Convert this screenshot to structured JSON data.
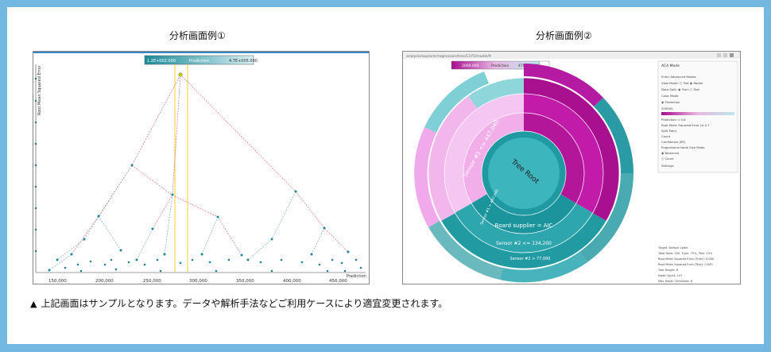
{
  "captions": {
    "left": "分析画面例①",
    "right": "分析画面例②"
  },
  "footnote": {
    "marker": "▲",
    "text": "上記画面はサンプルとなります。データや解析手法などご利用ケースにより適宜変更されます。"
  },
  "screen1": {
    "legend_min": "1.2E+002.000",
    "legend_label": "Prediction",
    "legend_max": "4.7E+005.000",
    "y_axis_label": "Root Mean Squared Error",
    "x_axis_label": "Prediction",
    "x_ticks": [
      "150,000",
      "200,000",
      "250,000",
      "300,000",
      "350,000",
      "400,000",
      "450,000"
    ]
  },
  "screen2": {
    "url": "analysis/explorer/regression/tree/1375/model/9",
    "legend_min": "2000.000",
    "legend_label": "Prediction",
    "legend_max": "47000.000",
    "sunburst": {
      "root_label": "Tree Root",
      "sensor1_right": "Sensor #1 <= 447,040",
      "sensor1_left": "Sensor #1 > 447,040",
      "board_supplier": "Board supplier = AIC",
      "sensor2_a": "Sensor #2 <= 134,200",
      "sensor2_b": "Sensor #2 > 77,000"
    },
    "panel": {
      "title": "ACA Mode",
      "rows": [
        "Enter Advanced Modes",
        "View Mode: ○ Plot ◉ Radial",
        "Data Split: ◉ Train ○ Test",
        "Color Mode",
        "◉ Prediction",
        "200000",
        "Prediction < 0.8",
        "Root Mean Squared Error (≤ 0.7",
        "Split Point",
        "Count",
        "Confidence (BF)",
        "Proportional Node Size Mode",
        "◉ Balanced",
        "○ Count",
        "Settings"
      ],
      "stats": [
        "Target: Default Label",
        "Total Data: 500, Train: 75%, Test: 25%",
        "Root Mean Squared Error (Train): 0.000",
        "Root Mean Squared Error (Test): 0.000",
        "Tree Height: 8",
        "Node Count: 147",
        "Max Depth Threshold: 8"
      ]
    }
  }
}
